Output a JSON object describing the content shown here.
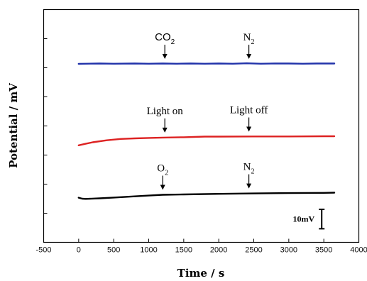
{
  "chart_data": {
    "type": "line",
    "xlabel": "Time / s",
    "ylabel": "Potential / mV",
    "xlim": [
      -500,
      4000
    ],
    "xticks": [
      "-500",
      "0",
      "500",
      "1000",
      "1500",
      "2000",
      "2500",
      "3000",
      "3500",
      "4000"
    ],
    "ylim": [
      0,
      12
    ],
    "y_tick_count": 7,
    "y_tick_labels_shown": false,
    "grid": false,
    "legend": "none",
    "series": [
      {
        "color": "#2233aa",
        "x": [
          0,
          100,
          300,
          500,
          800,
          1000,
          1200,
          1400,
          1600,
          1800,
          2000,
          2200,
          2400,
          2600,
          2800,
          3000,
          3200,
          3400,
          3600,
          3650
        ],
        "y": [
          9.2,
          9.21,
          9.22,
          9.21,
          9.22,
          9.21,
          9.22,
          9.21,
          9.22,
          9.21,
          9.22,
          9.21,
          9.23,
          9.21,
          9.22,
          9.22,
          9.21,
          9.22,
          9.22,
          9.22
        ]
      },
      {
        "color": "#dd2222",
        "x": [
          0,
          100,
          200,
          400,
          600,
          800,
          1000,
          1200,
          1500,
          1800,
          2000,
          2500,
          3000,
          3500,
          3650
        ],
        "y": [
          5.0,
          5.08,
          5.16,
          5.26,
          5.33,
          5.36,
          5.38,
          5.4,
          5.42,
          5.45,
          5.45,
          5.46,
          5.46,
          5.47,
          5.47
        ]
      },
      {
        "color": "#000000",
        "x": [
          0,
          50,
          100,
          300,
          500,
          800,
          1000,
          1200,
          1500,
          2000,
          2500,
          3000,
          3500,
          3650
        ],
        "y": [
          2.3,
          2.25,
          2.24,
          2.27,
          2.31,
          2.37,
          2.41,
          2.45,
          2.47,
          2.5,
          2.52,
          2.54,
          2.55,
          2.56
        ]
      }
    ],
    "annotations": [
      {
        "label": "CO",
        "subscript": "2",
        "x": 1230,
        "y": 9.2,
        "style": "sans"
      },
      {
        "label": "N",
        "subscript": "2",
        "x": 2430,
        "y": 9.2,
        "style": "serif"
      },
      {
        "label": "Light on",
        "subscript": "",
        "x": 1230,
        "y": 5.4,
        "style": "serif"
      },
      {
        "label": "Light off",
        "subscript": "",
        "x": 2430,
        "y": 5.45,
        "style": "serif"
      },
      {
        "label": "O",
        "subscript": "2",
        "x": 1200,
        "y": 2.45,
        "style": "serif"
      },
      {
        "label": "N",
        "subscript": "2",
        "x": 2430,
        "y": 2.52,
        "style": "serif"
      }
    ],
    "scale_bar": {
      "label": "10mV",
      "x": 3470,
      "y_low": 0.7,
      "y_high": 1.7
    }
  }
}
